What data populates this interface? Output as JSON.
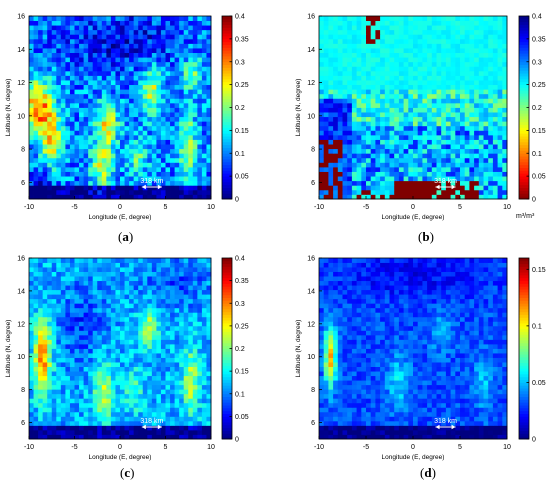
{
  "panels": [
    {
      "caption_open": "(",
      "caption_letter": "a",
      "caption_close": ")",
      "chart_data": {
        "type": "heatmap",
        "xlabel": "Longitude (E, degree)",
        "ylabel": "Latitude (N, degree)",
        "xlim": [
          -10,
          10
        ],
        "ylim": [
          5,
          16
        ],
        "xticks": [
          "-10",
          "-5",
          "0",
          "5",
          "10"
        ],
        "yticks": [
          "6",
          "8",
          "10",
          "12",
          "14",
          "16"
        ],
        "colorbar": {
          "min": 0,
          "max": 0.4,
          "ticks": [
            "0",
            "0.05",
            "0.1",
            "0.15",
            "0.2",
            "0.25",
            "0.3",
            "0.35",
            "0.4"
          ],
          "colormap": "jet",
          "reversed": false,
          "unit": ""
        },
        "annotation": "318 km",
        "pattern": "a"
      }
    },
    {
      "caption_open": "(",
      "caption_letter": "b",
      "caption_close": ")",
      "chart_data": {
        "type": "heatmap",
        "xlabel": "Longitude (E, degree)",
        "ylabel": "Latitude (N, degree)",
        "xlim": [
          -10,
          10
        ],
        "ylim": [
          5,
          16
        ],
        "xticks": [
          "-10",
          "-5",
          "0",
          "5",
          "10"
        ],
        "yticks": [
          "6",
          "8",
          "10",
          "12",
          "14",
          "16"
        ],
        "colorbar": {
          "min": 0,
          "max": 0.4,
          "ticks": [
            "0",
            "0.05",
            "0.1",
            "0.15",
            "0.2",
            "0.25",
            "0.3",
            "0.35",
            "0.4"
          ],
          "colormap": "jet",
          "reversed": true,
          "unit": "m³/m³"
        },
        "annotation": "318 km",
        "pattern": "b"
      }
    },
    {
      "caption_open": "(",
      "caption_letter": "c",
      "caption_close": ")",
      "chart_data": {
        "type": "heatmap",
        "xlabel": "Longitude (E, degree)",
        "ylabel": "Latitude (N, degree)",
        "xlim": [
          -10,
          10
        ],
        "ylim": [
          5,
          16
        ],
        "xticks": [
          "-10",
          "-5",
          "0",
          "5",
          "10"
        ],
        "yticks": [
          "6",
          "8",
          "10",
          "12",
          "14",
          "16"
        ],
        "colorbar": {
          "min": 0,
          "max": 0.4,
          "ticks": [
            "0",
            "0.05",
            "0.1",
            "0.15",
            "0.2",
            "0.25",
            "0.3",
            "0.35",
            "0.4"
          ],
          "colormap": "jet",
          "reversed": false,
          "unit": ""
        },
        "annotation": "318 km",
        "pattern": "c"
      }
    },
    {
      "caption_open": "(",
      "caption_letter": "d",
      "caption_close": ")",
      "chart_data": {
        "type": "heatmap",
        "xlabel": "Longitude (E, degree)",
        "ylabel": "Latitude (N, degree)",
        "xlim": [
          -10,
          10
        ],
        "ylim": [
          5,
          16
        ],
        "xticks": [
          "-10",
          "-5",
          "0",
          "5",
          "10"
        ],
        "yticks": [
          "6",
          "8",
          "10",
          "12",
          "14",
          "16"
        ],
        "colorbar": {
          "min": 0,
          "max": 0.16,
          "ticks": [
            "0",
            "0.05",
            "0.1",
            "0.15"
          ],
          "colormap": "jet",
          "reversed": false,
          "unit": ""
        },
        "annotation": "318 km",
        "pattern": "d"
      }
    }
  ]
}
